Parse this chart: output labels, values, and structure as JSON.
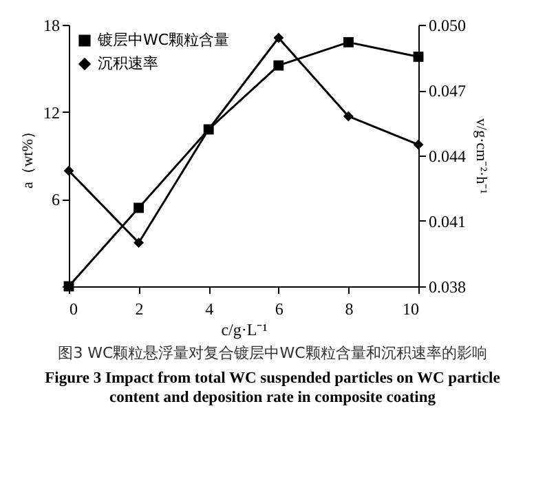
{
  "chart_data": {
    "type": "line",
    "xlabel": "c/g·L⁻¹",
    "ylabel": "a（wt%）",
    "y2label": "v/g·cm⁻²·h⁻¹",
    "x": [
      0,
      2,
      4,
      6,
      8,
      10
    ],
    "series": [
      {
        "name": "镀层中WC颗粒含量",
        "color": "#000000",
        "marker": "square",
        "values": [
          0,
          5.4,
          10.8,
          15.2,
          16.8,
          15.8
        ]
      },
      {
        "name": "沉积速率",
        "color": "#000000",
        "marker": "diamond",
        "axis": "y2",
        "values": [
          0.0433,
          0.04,
          0.0452,
          0.0494,
          0.0458,
          0.0445
        ]
      }
    ],
    "xlim": [
      0,
      10
    ],
    "xticks": [
      0,
      2,
      4,
      6,
      8,
      10
    ],
    "ylim": [
      0,
      18
    ],
    "yticks": [
      {
        "value": 0,
        "label": null
      },
      6,
      12,
      18
    ],
    "y2lim": [
      0.038,
      0.05
    ],
    "y2ticks": [
      0.038,
      0.041,
      0.044,
      0.047,
      {
        "value": 0.05,
        "label": "0.050"
      }
    ],
    "legend": "top left",
    "grid": false,
    "annotations": [
      "图3 WC颗粒悬浮量对复合镀层中WC颗粒含量和沉积速率的影响",
      "Figure 3 Impact from total WC suspended particles on WC particle content and deposition rate in composite coating"
    ]
  }
}
